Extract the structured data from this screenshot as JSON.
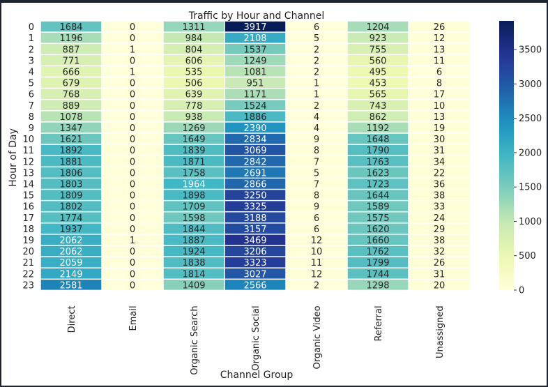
{
  "chart_data": {
    "type": "heatmap",
    "title": "Traffic by Hour and Channel",
    "xlabel": "Channel Group",
    "ylabel": "Hour of Day",
    "columns": [
      "Direct",
      "Email",
      "Organic Search",
      "Organic Social",
      "Organic Video",
      "Referral",
      "Unassigned"
    ],
    "rows": [
      "0",
      "1",
      "2",
      "3",
      "4",
      "5",
      "6",
      "7",
      "8",
      "9",
      "10",
      "11",
      "12",
      "13",
      "14",
      "15",
      "16",
      "17",
      "18",
      "19",
      "20",
      "21",
      "22",
      "23"
    ],
    "values": [
      [
        1684,
        0,
        1311,
        3917,
        6,
        1204,
        26
      ],
      [
        1196,
        0,
        984,
        2108,
        5,
        923,
        12
      ],
      [
        887,
        1,
        804,
        1537,
        2,
        755,
        13
      ],
      [
        771,
        0,
        606,
        1249,
        2,
        560,
        11
      ],
      [
        666,
        1,
        535,
        1081,
        2,
        495,
        6
      ],
      [
        679,
        0,
        506,
        951,
        1,
        453,
        8
      ],
      [
        768,
        0,
        639,
        1171,
        1,
        565,
        17
      ],
      [
        889,
        0,
        778,
        1524,
        2,
        743,
        10
      ],
      [
        1078,
        0,
        938,
        1886,
        4,
        862,
        13
      ],
      [
        1347,
        0,
        1269,
        2390,
        4,
        1192,
        19
      ],
      [
        1621,
        0,
        1649,
        2834,
        9,
        1648,
        30
      ],
      [
        1892,
        0,
        1839,
        3069,
        8,
        1790,
        31
      ],
      [
        1881,
        0,
        1871,
        2842,
        7,
        1763,
        34
      ],
      [
        1806,
        0,
        1758,
        2691,
        5,
        1623,
        22
      ],
      [
        1803,
        0,
        1964,
        2866,
        7,
        1723,
        36
      ],
      [
        1809,
        0,
        1898,
        3250,
        8,
        1644,
        38
      ],
      [
        1802,
        0,
        1709,
        3325,
        9,
        1589,
        33
      ],
      [
        1774,
        0,
        1598,
        3188,
        6,
        1575,
        24
      ],
      [
        1937,
        0,
        1844,
        3157,
        6,
        1620,
        29
      ],
      [
        2062,
        1,
        1887,
        3469,
        12,
        1660,
        38
      ],
      [
        2062,
        0,
        1924,
        3206,
        10,
        1762,
        32
      ],
      [
        2059,
        0,
        1838,
        3323,
        11,
        1799,
        26
      ],
      [
        2149,
        0,
        1814,
        3027,
        12,
        1744,
        31
      ],
      [
        2581,
        0,
        1409,
        2566,
        2,
        1298,
        20
      ]
    ],
    "colorbar": {
      "min": 0,
      "max": 3917,
      "ticks": [
        0,
        500,
        1000,
        1500,
        2000,
        2500,
        3000,
        3500
      ],
      "colormap": "YlGnBu"
    },
    "grid": false,
    "cell_border_color": "#ffffff"
  }
}
